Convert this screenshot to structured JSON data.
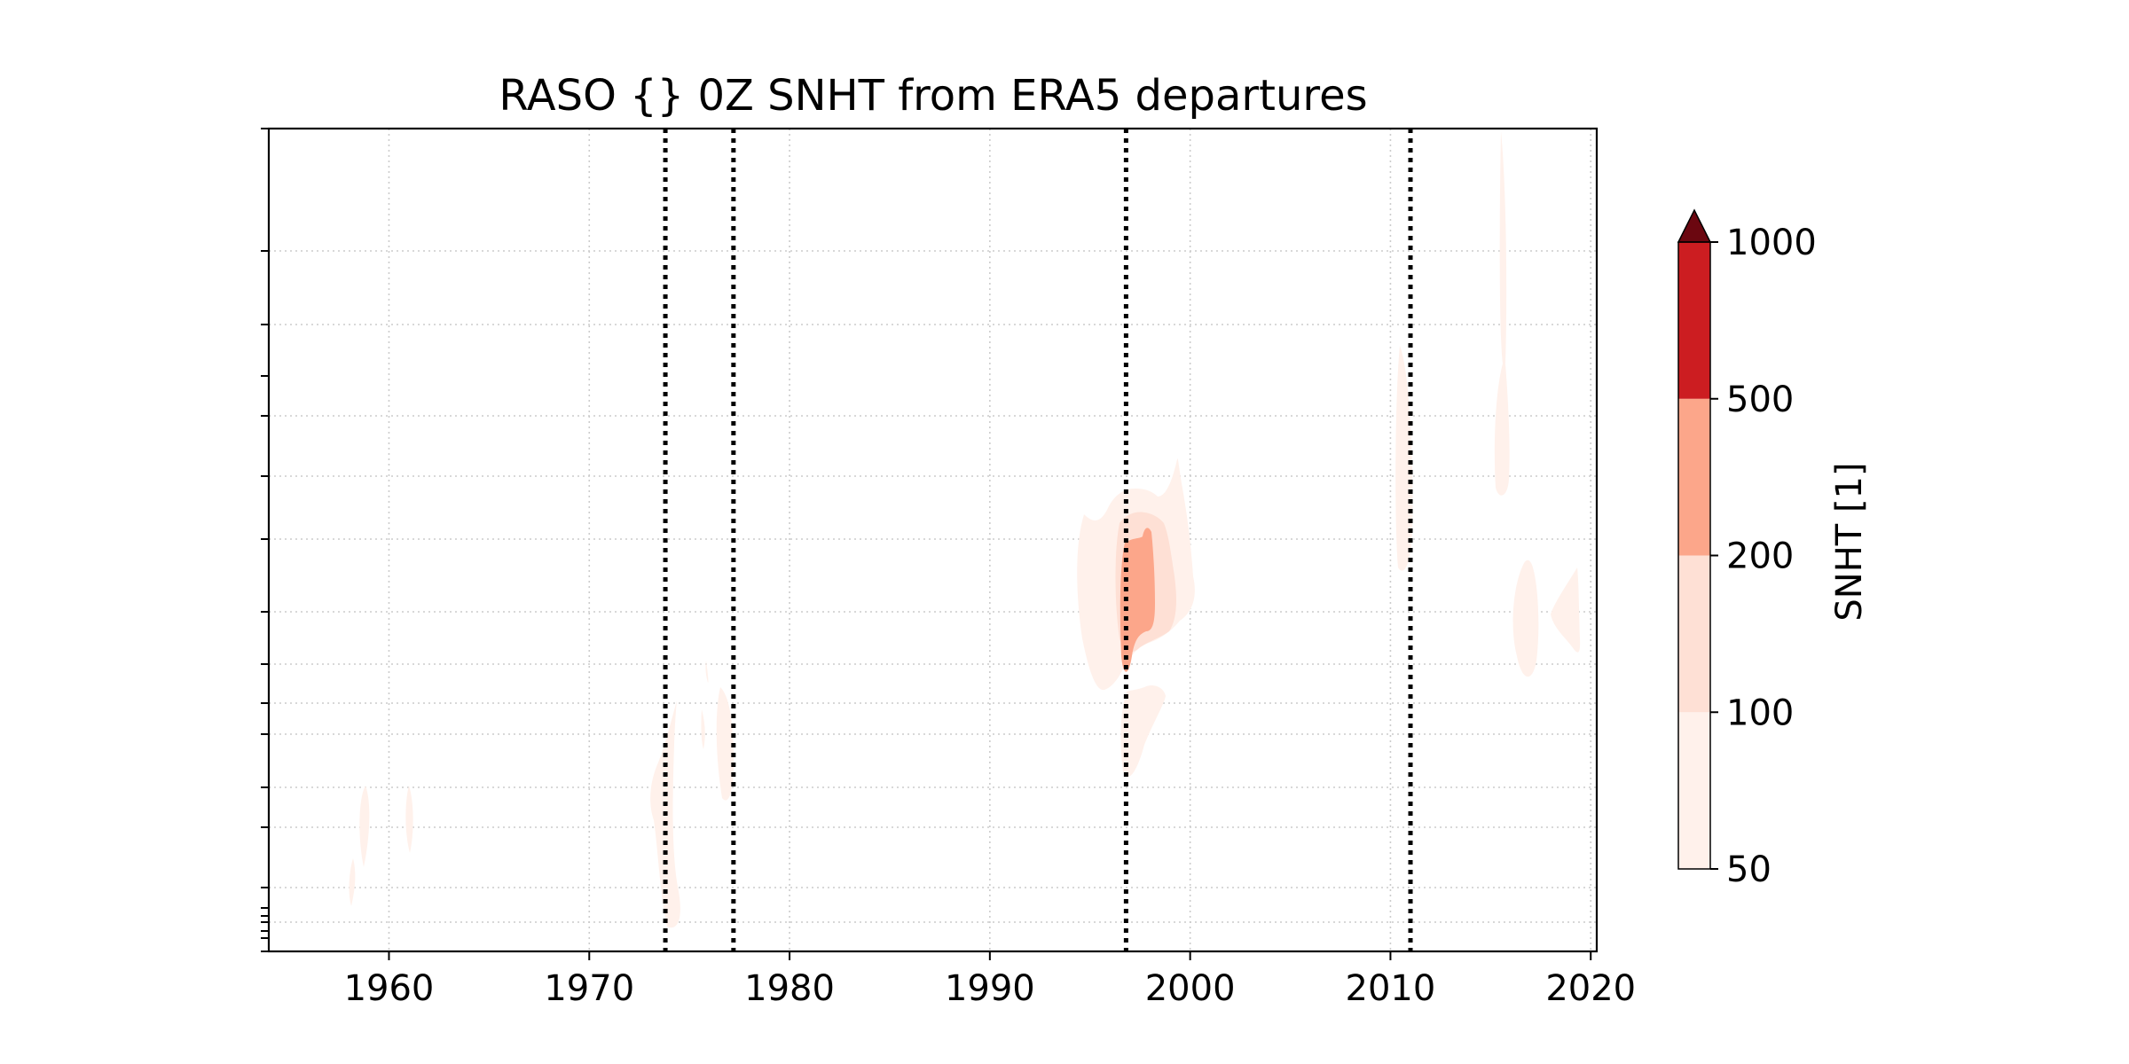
{
  "chart_data": {
    "type": "heatmap",
    "subtype": "filled-contour",
    "title": "RASO {} 0Z SNHT from ERA5 departures",
    "xlabel": "",
    "ylabel": "",
    "xlim": [
      1954,
      2020.3
    ],
    "x_ticks": [
      1960,
      1970,
      1980,
      1990,
      2000,
      2010,
      2020
    ],
    "x_tick_labels": [
      "1960",
      "1970",
      "1980",
      "1990",
      "2000",
      "2010",
      "2020"
    ],
    "y_axis": "log-pressure, no tick labels",
    "grid": true,
    "colormap": "Reds",
    "colorbar": {
      "label": "SNHT [1]",
      "levels": [
        50,
        100,
        200,
        500,
        1000
      ],
      "tick_labels": [
        "50",
        "100",
        "200",
        "500",
        "1000"
      ],
      "extend": "max",
      "colors": [
        "#fff1eb",
        "#fee0d5",
        "#fca68a",
        "#cc1d21",
        "#6b0710"
      ]
    },
    "break_markers_year": [
      1973.8,
      1977.2,
      1996.8,
      2011.0
    ],
    "snht_regions": [
      {
        "year_start": 1958.0,
        "year_end": 1958.5,
        "level": "50-100"
      },
      {
        "year_start": 1958.5,
        "year_end": 1959.2,
        "level": "50-100"
      },
      {
        "year_start": 1960.6,
        "year_end": 1961.2,
        "level": "50-100"
      },
      {
        "year_start": 1973.0,
        "year_end": 1975.0,
        "level": "50-100"
      },
      {
        "year_start": 1975.8,
        "year_end": 1977.1,
        "level": "50-100"
      },
      {
        "year_start": 1994.2,
        "year_end": 2000.2,
        "level": "50-100"
      },
      {
        "year_start": 1996.5,
        "year_end": 1999.0,
        "level": "100-200"
      },
      {
        "year_start": 1996.4,
        "year_end": 1997.2,
        "level": "200-500"
      },
      {
        "year_start": 1997.2,
        "year_end": 1998.1,
        "level": "200-500"
      },
      {
        "year_start": 2010.6,
        "year_end": 2011.2,
        "level": "50-100"
      },
      {
        "year_start": 2014.8,
        "year_end": 2015.4,
        "level": "50-100"
      },
      {
        "year_start": 2016.4,
        "year_end": 2017.5,
        "level": "50-100"
      },
      {
        "year_start": 2017.6,
        "year_end": 2019.3,
        "level": "50-100"
      }
    ]
  }
}
